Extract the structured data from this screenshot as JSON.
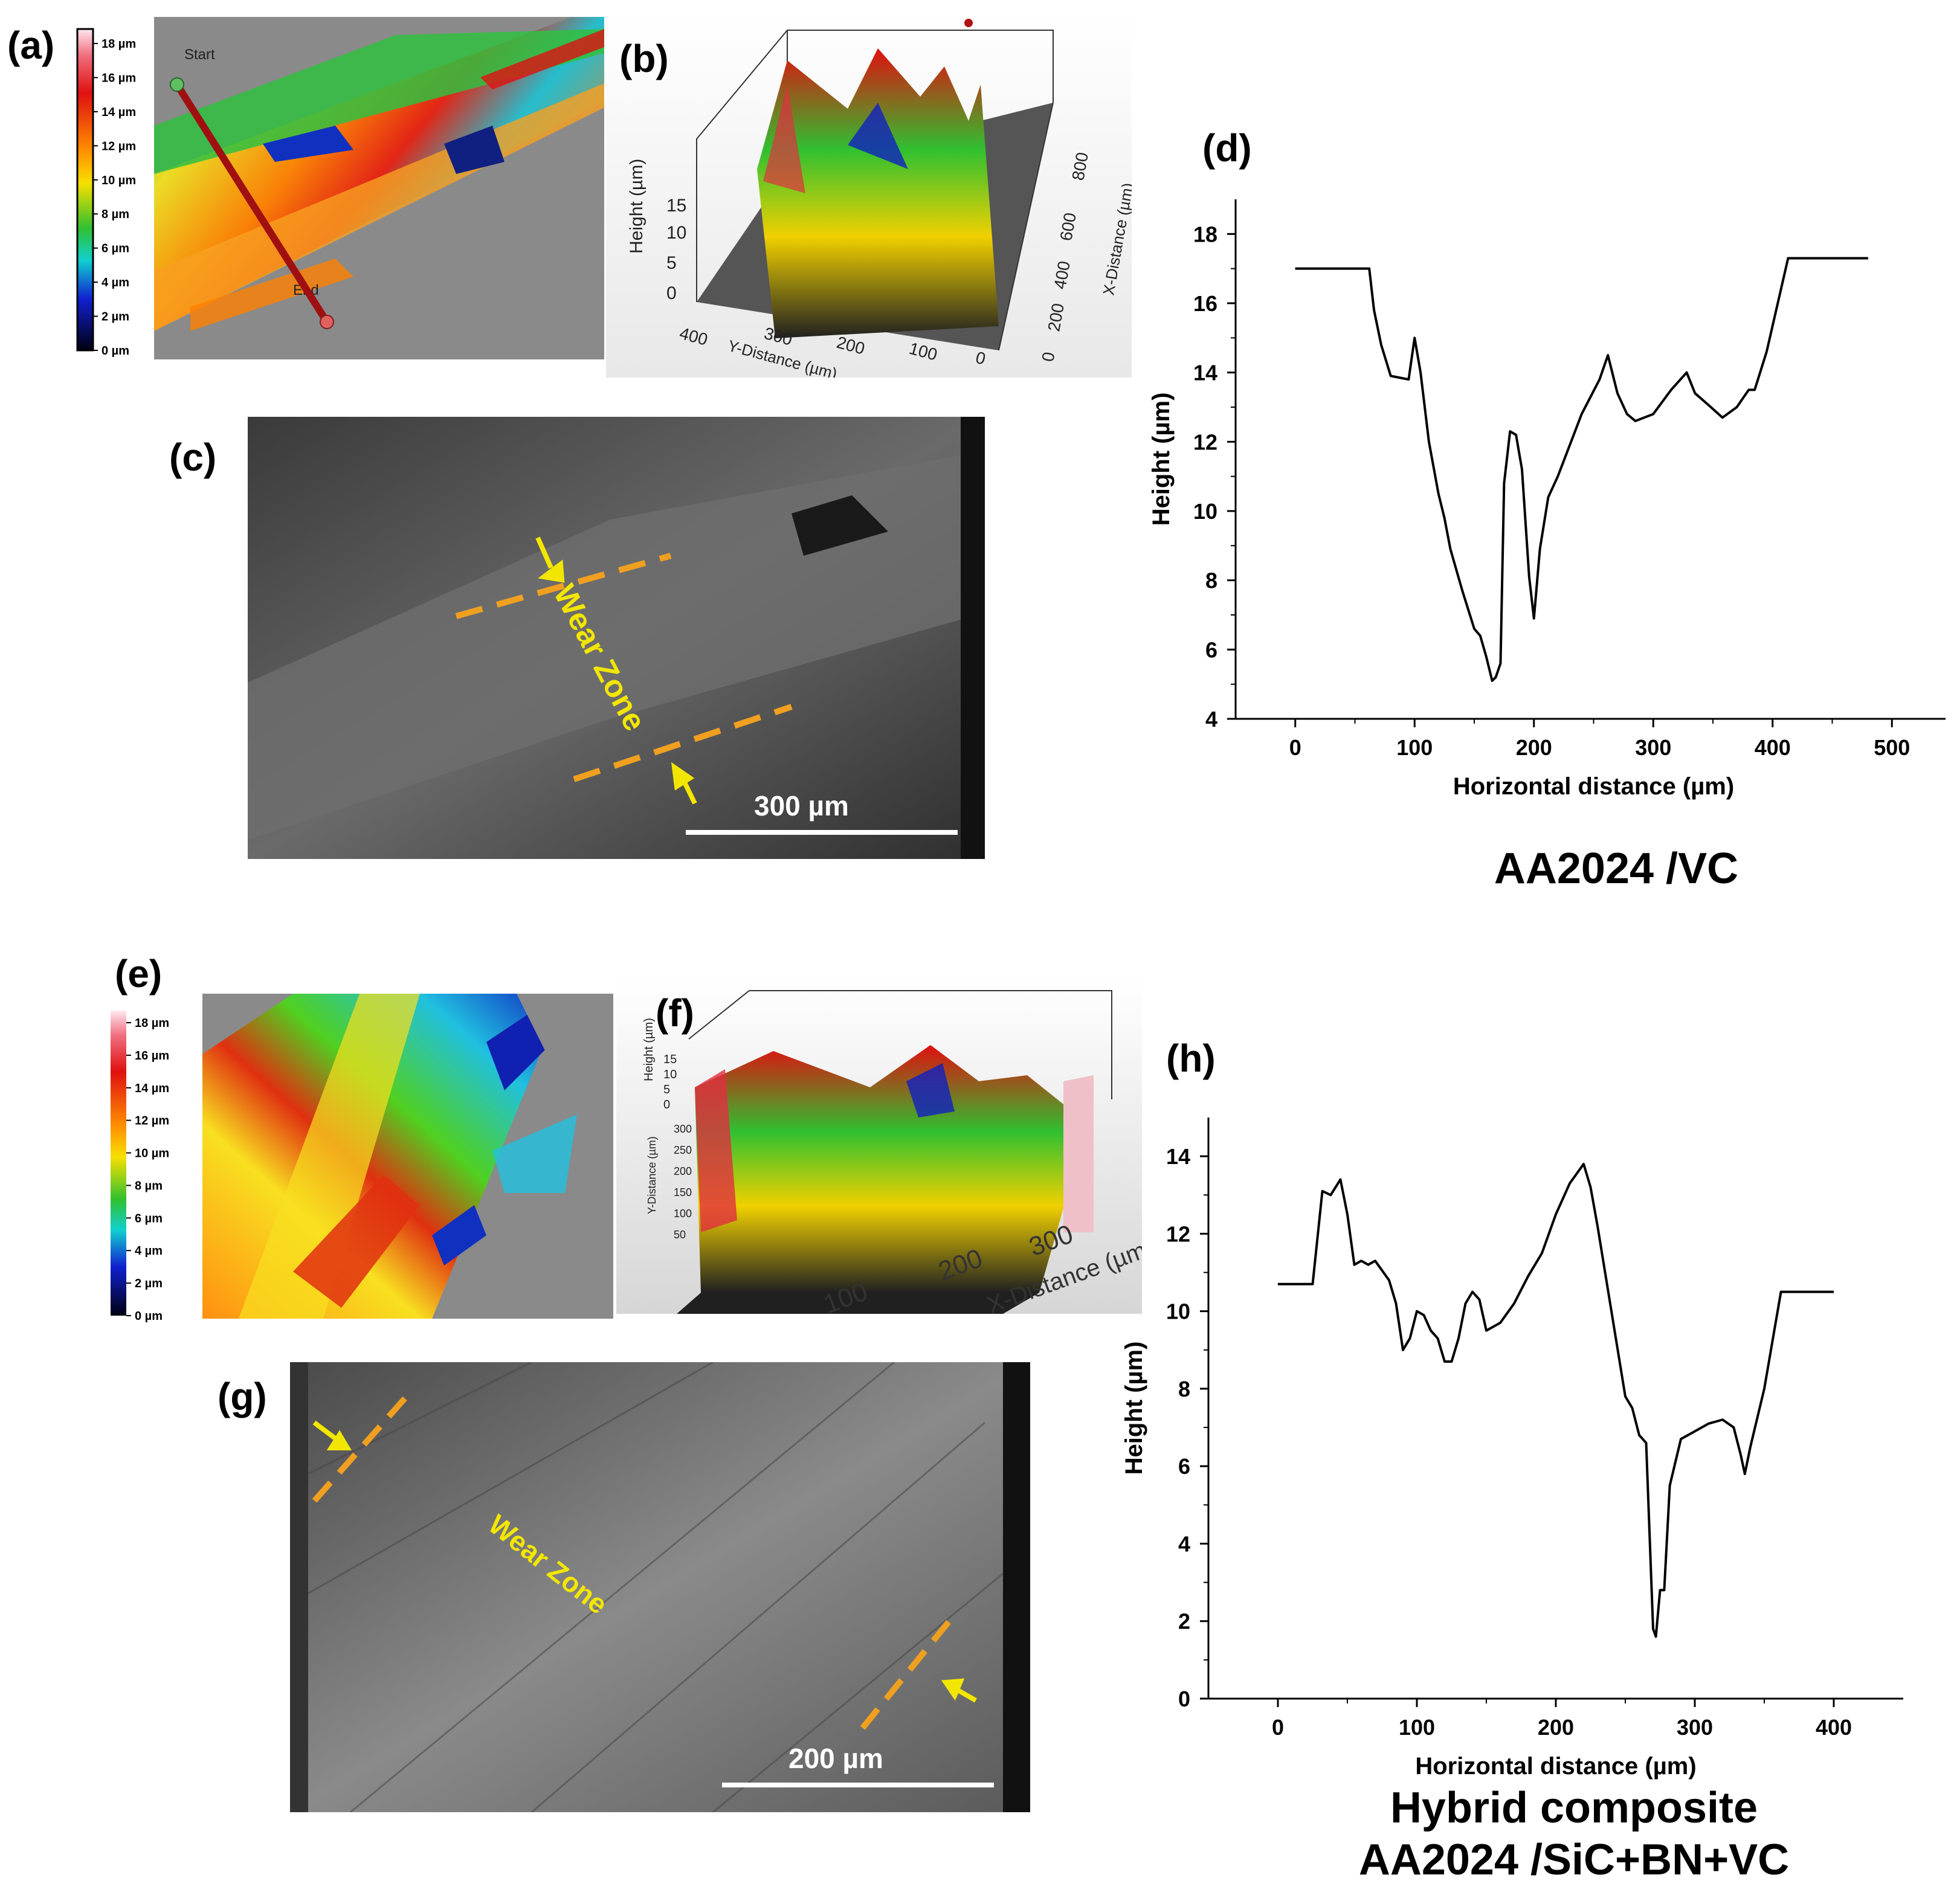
{
  "panels": {
    "a": "(a)",
    "b": "(b)",
    "c": "(c)",
    "d": "(d)",
    "e": "(e)",
    "f": "(f)",
    "g": "(g)",
    "h": "(h)"
  },
  "colorbar_ticks": [
    "18 µm",
    "16 µm",
    "14 µm",
    "12 µm",
    "10 µm",
    "8 µm",
    "6 µm",
    "4 µm",
    "2 µm",
    "0 µm"
  ],
  "panel_a": {
    "start_label": "Start",
    "end_label": "End"
  },
  "panel_b": {
    "z_label": "Height (µm)",
    "z_ticks": [
      "15",
      "10",
      "5",
      "0"
    ],
    "y_label": "Y-Distance (µm)",
    "y_ticks": [
      "400",
      "300",
      "200",
      "100",
      "0"
    ],
    "x_label": "X-Distance (µm)",
    "x_ticks": [
      "800",
      "600",
      "400",
      "200",
      "0"
    ]
  },
  "panel_c": {
    "wear_zone": "Wear Zone",
    "scale_bar": "300 µm"
  },
  "panel_f": {
    "z_label": "Height (µm)",
    "z_ticks": [
      "15",
      "10",
      "5",
      "0"
    ],
    "y_label": "Y-Distance (µm)",
    "y_ticks": [
      "300",
      "250",
      "200",
      "150",
      "100",
      "50"
    ],
    "x_ticks": [
      "100",
      "200",
      "300"
    ],
    "x_label": "X-Distance (µm)"
  },
  "panel_g": {
    "wear_zone": "Wear Zone",
    "scale_bar": "200 µm"
  },
  "caption_top": "AA2024 /VC",
  "caption_bottom_1": "Hybrid composite",
  "caption_bottom_2": "AA2024 /SiC+BN+VC",
  "colors": {
    "axis": "#000000",
    "line": "#000000",
    "dash": "#f0a020",
    "arrow": "#f2e600",
    "wear_text": "#f2e600"
  },
  "chart_data": [
    {
      "id": "d",
      "type": "line",
      "title": "",
      "xlabel": "Horizontal distance (µm)",
      "ylabel": "Height (µm)",
      "xlim": [
        -50,
        550
      ],
      "ylim": [
        4,
        19
      ],
      "xticks": [
        0,
        100,
        200,
        300,
        400,
        500
      ],
      "yticks": [
        4,
        6,
        8,
        10,
        12,
        14,
        16,
        18
      ],
      "series": [
        {
          "name": "AA2024 /VC",
          "x": [
            0,
            62,
            66,
            72,
            80,
            95,
            100,
            105,
            112,
            120,
            125,
            130,
            140,
            150,
            155,
            160,
            165,
            168,
            172,
            175,
            180,
            185,
            190,
            196,
            200,
            205,
            212,
            220,
            240,
            255,
            262,
            270,
            278,
            285,
            300,
            315,
            328,
            335,
            345,
            358,
            370,
            380,
            385,
            395,
            405,
            413,
            480
          ],
          "y": [
            17,
            17,
            15.8,
            14.8,
            13.9,
            13.8,
            15,
            14,
            12,
            10.5,
            9.8,
            8.9,
            7.7,
            6.6,
            6.4,
            5.8,
            5.1,
            5.2,
            5.6,
            10.8,
            12.3,
            12.2,
            11.2,
            8.1,
            6.9,
            8.9,
            10.4,
            11,
            12.8,
            13.8,
            14.5,
            13.4,
            12.8,
            12.6,
            12.8,
            13.5,
            14,
            13.4,
            13.1,
            12.7,
            13,
            13.5,
            13.5,
            14.6,
            16.1,
            17.3,
            17.3
          ]
        }
      ]
    },
    {
      "id": "h",
      "type": "line",
      "title": "",
      "xlabel": "Horizontal distance (µm)",
      "ylabel": "Height (µm)",
      "xlim": [
        -50,
        450
      ],
      "ylim": [
        0,
        15
      ],
      "xticks": [
        0,
        100,
        200,
        300,
        400
      ],
      "yticks": [
        0,
        2,
        4,
        6,
        8,
        10,
        12,
        14
      ],
      "series": [
        {
          "name": "Hybrid composite AA2024 /SiC+BN+VC",
          "x": [
            0,
            25,
            32,
            38,
            45,
            50,
            55,
            60,
            65,
            70,
            80,
            85,
            90,
            95,
            100,
            105,
            110,
            115,
            120,
            125,
            130,
            135,
            140,
            145,
            150,
            160,
            170,
            180,
            190,
            200,
            210,
            220,
            225,
            230,
            240,
            250,
            255,
            260,
            265,
            270,
            272,
            275,
            278,
            282,
            290,
            300,
            310,
            320,
            328,
            333,
            336,
            340,
            350,
            362,
            400
          ],
          "y": [
            10.7,
            10.7,
            13.1,
            13,
            13.4,
            12.5,
            11.2,
            11.3,
            11.2,
            11.3,
            10.8,
            10.2,
            9.0,
            9.3,
            10,
            9.9,
            9.5,
            9.3,
            8.7,
            8.7,
            9.3,
            10.2,
            10.5,
            10.3,
            9.5,
            9.7,
            10.2,
            10.9,
            11.5,
            12.5,
            13.3,
            13.8,
            13.2,
            12.2,
            10,
            7.8,
            7.5,
            6.8,
            6.6,
            1.8,
            1.6,
            2.8,
            2.8,
            5.5,
            6.7,
            6.9,
            7.1,
            7.2,
            7.0,
            6.3,
            5.8,
            6.5,
            8.0,
            10.5,
            10.5
          ]
        }
      ]
    }
  ]
}
